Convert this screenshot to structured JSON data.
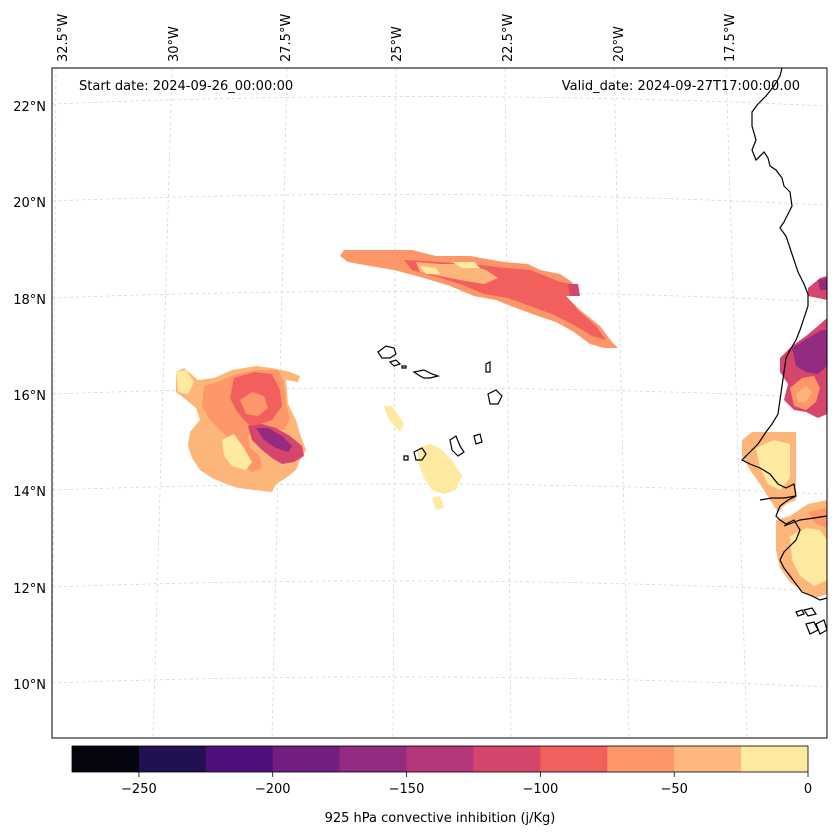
{
  "header": {
    "start_date": "Start date: 2024-09-26_00:00:00",
    "valid_date": "Valid_date: 2024-09-27T17:00:00.00"
  },
  "axes": {
    "lon_labels": [
      "32.5°W",
      "30°W",
      "27.5°W",
      "25°W",
      "22.5°W",
      "20°W",
      "17.5°W"
    ],
    "lat_labels": [
      "22°N",
      "20°N",
      "18°N",
      "16°N",
      "14°N",
      "12°N",
      "10°N"
    ]
  },
  "colorbar": {
    "label": "925 hPa convective inhibition (j/Kg)",
    "ticks": [
      "−250",
      "−200",
      "−150",
      "−100",
      "−50",
      "0"
    ],
    "colors": [
      "#05040f",
      "#221150",
      "#4f0f7b",
      "#721f81",
      "#932b80",
      "#b5367a",
      "#d6456c",
      "#f1605d",
      "#fd9668",
      "#feb77e",
      "#fde9a0"
    ]
  },
  "map": {
    "gridlines": "dashed light gray",
    "features": [
      "coastline",
      "cape-verde-islands"
    ],
    "field": "925 hPa convective inhibition"
  }
}
